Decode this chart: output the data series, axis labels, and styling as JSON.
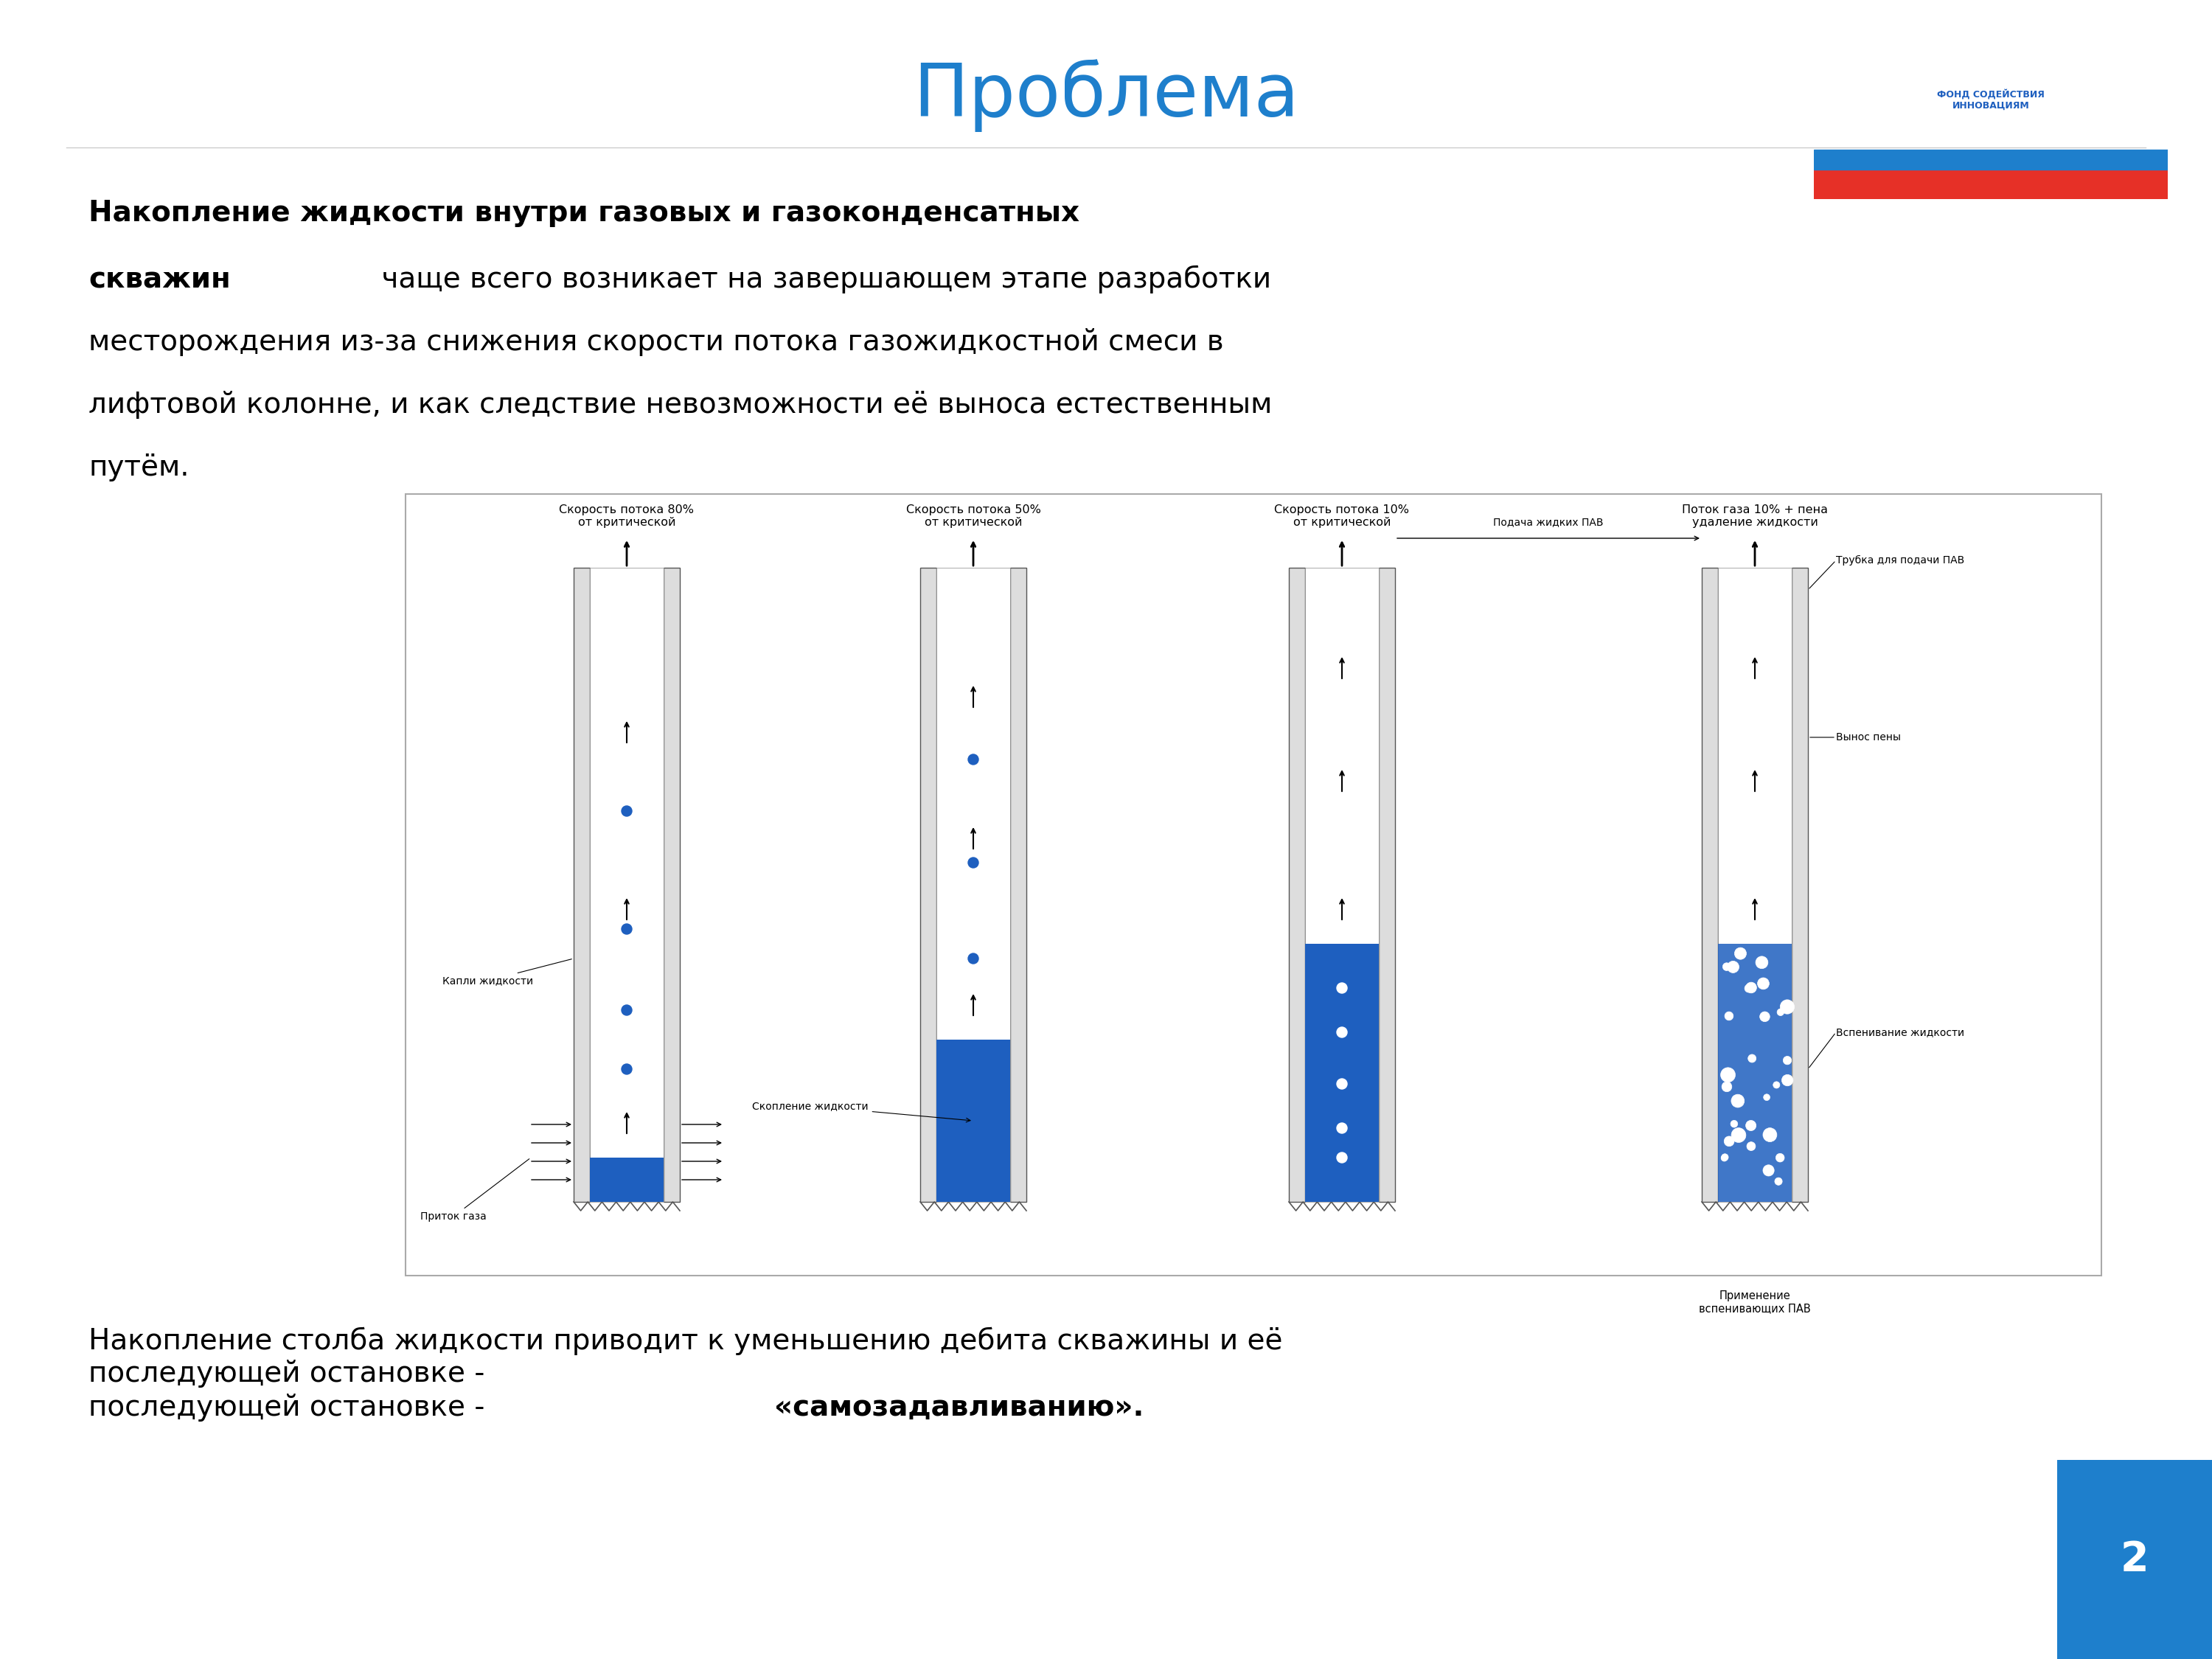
{
  "title": "Проблема",
  "title_color": "#1E7FCC",
  "title_fontsize": 72,
  "bg_color": "#FFFFFF",
  "paragraph1_bold": "Накопление жидкости внутри газовых и газоконденсатных скважин",
  "paragraph1_normal": " чаще всего возникает на завершающем этапе разработки месторождения из-за снижения скорости потока газожидкостной смеси в лифтовой колонне, и как следствие невозможности её выноса естественным путём.",
  "bottom_text_normal": "Накопление столба жидкости приводит к уменьшению дебита скважины и её\nпоследующей остановке - ",
  "bottom_text_bold": "«самозадавливанию».",
  "page_number": "2",
  "page_bg_color": "#1E7FCC",
  "col1_label": "Скорость потока 80%\nот критической",
  "col2_label": "Скорость потока 50%\nот критической",
  "col3_label": "Скорость потока 10%\nот критической",
  "col4_label": "Поток газа 10% + пена\nудаление жидкости",
  "col4_sublabel": "Применение\nвспенивающих ПАВ",
  "annotation_drops": "Капли жидкости",
  "annotation_gas": "Приток газа",
  "annotation_accum": "Скопление жидкости",
  "annotation_foam": "Вспенивание жидкости",
  "annotation_pav_supply": "Подача жидких ПАВ",
  "annotation_pav_tube": "Трубка для подачи ПАВ",
  "annotation_foam_out": "Вынос пены",
  "liquid_color": "#1E5FBF",
  "dot_color": "#1E5FBF",
  "foam_color": "#4F94CD"
}
